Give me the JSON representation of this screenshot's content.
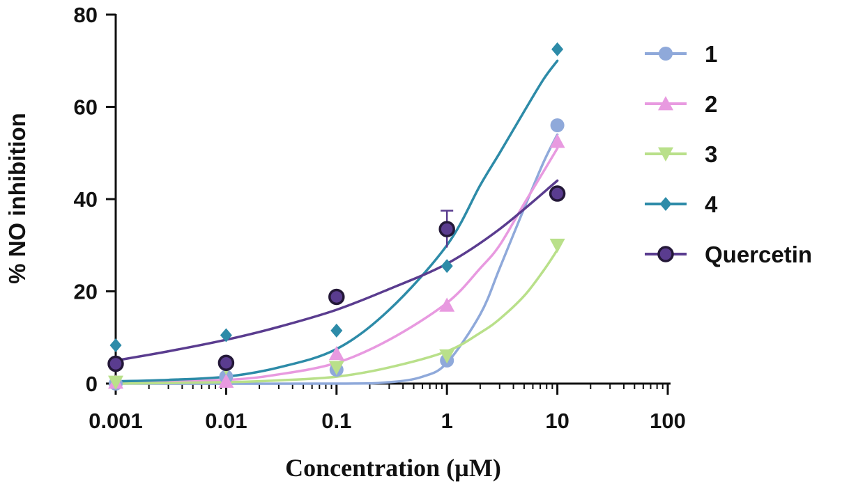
{
  "chart_data": {
    "type": "scatter",
    "title": "",
    "xlabel": "Concentration (µM)",
    "ylabel": "% NO inhibition",
    "xscale": "log",
    "xlim": [
      0.001,
      100
    ],
    "ylim": [
      0,
      80
    ],
    "x_ticks": [
      {
        "value": 0.001,
        "label": "0.001"
      },
      {
        "value": 0.01,
        "label": "0.01"
      },
      {
        "value": 0.1,
        "label": "0.1"
      },
      {
        "value": 1,
        "label": "1"
      },
      {
        "value": 10,
        "label": "10"
      },
      {
        "value": 100,
        "label": "100"
      }
    ],
    "y_ticks": [
      {
        "value": 0,
        "label": "0"
      },
      {
        "value": 20,
        "label": "20"
      },
      {
        "value": 40,
        "label": "40"
      },
      {
        "value": 60,
        "label": "60"
      },
      {
        "value": 80,
        "label": "80"
      }
    ],
    "grid": false,
    "legend_position": "right",
    "x": [
      0.001,
      0.01,
      0.1,
      1,
      10
    ],
    "series": [
      {
        "name": "1",
        "marker": "circle",
        "color": "#8fa9da",
        "values": [
          0,
          1.5,
          3,
          5,
          56
        ],
        "fit": [
          [
            0.001,
            0
          ],
          [
            0.1,
            0
          ],
          [
            0.3,
            0.3
          ],
          [
            0.6,
            1.5
          ],
          [
            1,
            4.5
          ],
          [
            2,
            15
          ],
          [
            3,
            25
          ],
          [
            5,
            38
          ],
          [
            7.5,
            48
          ],
          [
            10,
            54
          ]
        ]
      },
      {
        "name": "2",
        "marker": "triangle-up",
        "color": "#e89ae0",
        "values": [
          0.3,
          0.5,
          6.5,
          17,
          52.5
        ],
        "fit": [
          [
            0.001,
            0.1
          ],
          [
            0.01,
            0.8
          ],
          [
            0.03,
            2
          ],
          [
            0.1,
            4.5
          ],
          [
            0.3,
            9.5
          ],
          [
            1,
            17.5
          ],
          [
            2,
            25
          ],
          [
            3,
            30
          ],
          [
            5,
            39
          ],
          [
            7.5,
            46
          ],
          [
            10,
            51
          ]
        ]
      },
      {
        "name": "3",
        "marker": "triangle-down",
        "color": "#b9e08a",
        "values": [
          0.3,
          3.5,
          3.5,
          6,
          30
        ],
        "fit": [
          [
            0.001,
            0
          ],
          [
            0.01,
            0.3
          ],
          [
            0.03,
            0.7
          ],
          [
            0.1,
            1.5
          ],
          [
            0.3,
            3.5
          ],
          [
            1,
            7
          ],
          [
            2,
            11
          ],
          [
            3,
            14
          ],
          [
            5,
            19
          ],
          [
            7.5,
            24.5
          ],
          [
            10,
            29
          ]
        ]
      },
      {
        "name": "4",
        "marker": "diamond",
        "color": "#2d8ba8",
        "values": [
          8.3,
          10.5,
          11.5,
          25.5,
          72.5
        ],
        "fit": [
          [
            0.001,
            0.5
          ],
          [
            0.003,
            0.8
          ],
          [
            0.01,
            1.5
          ],
          [
            0.03,
            3.5
          ],
          [
            0.1,
            7.5
          ],
          [
            0.3,
            16
          ],
          [
            1,
            30
          ],
          [
            2,
            43
          ],
          [
            3,
            50
          ],
          [
            5,
            59
          ],
          [
            7.5,
            66
          ],
          [
            10,
            70
          ]
        ]
      },
      {
        "name": "Quercetin",
        "marker": "circle-outlined",
        "color": "#5a3c8f",
        "values": [
          4.3,
          4.5,
          18.8,
          33.5,
          41.2
        ],
        "error": [
          0,
          0,
          0,
          4,
          0
        ],
        "fit": [
          [
            0.001,
            5
          ],
          [
            0.003,
            7
          ],
          [
            0.01,
            9.5
          ],
          [
            0.03,
            12.3
          ],
          [
            0.1,
            16
          ],
          [
            0.3,
            20.5
          ],
          [
            1,
            26
          ],
          [
            3,
            33.5
          ],
          [
            10,
            44
          ]
        ]
      }
    ]
  }
}
